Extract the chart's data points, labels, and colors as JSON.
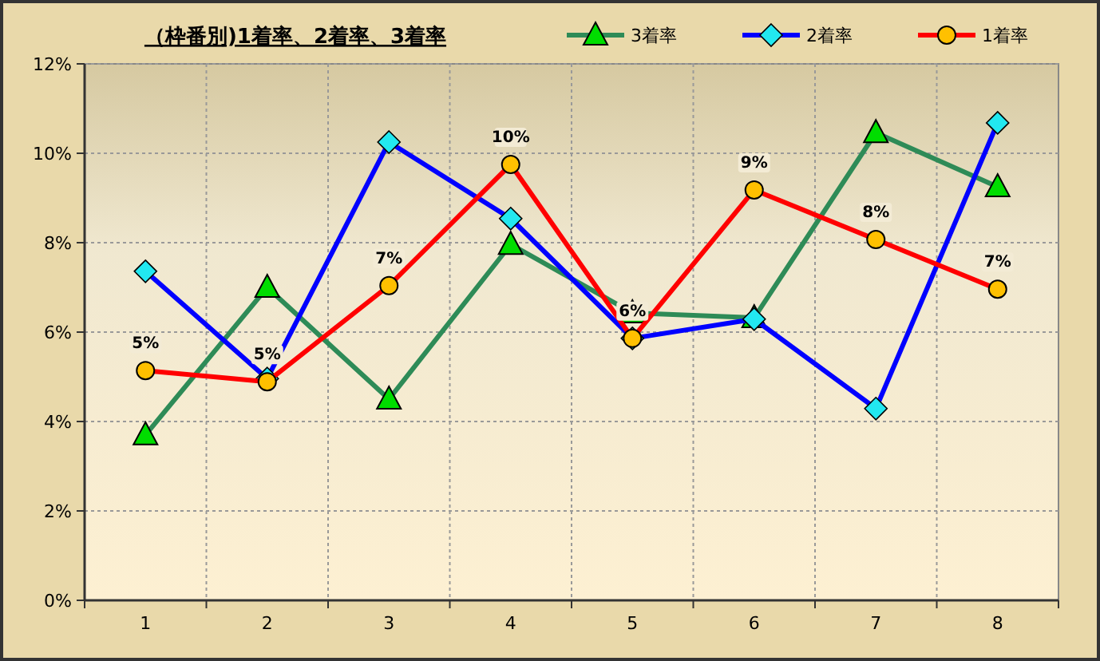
{
  "chart_data": {
    "type": "line",
    "title": "（枠番別)1着率、2着率、3着率",
    "categories": [
      "1",
      "2",
      "3",
      "4",
      "5",
      "6",
      "7",
      "8"
    ],
    "series": [
      {
        "name": "3着率",
        "color": "#2e8b57",
        "marker": "triangle",
        "values": [
          3.7,
          7.0,
          4.5,
          7.96,
          6.43,
          6.32,
          10.46,
          9.25
        ]
      },
      {
        "name": "2着率",
        "color": "#0000ff",
        "marker": "diamond",
        "values": [
          7.36,
          4.96,
          10.25,
          8.54,
          5.86,
          6.29,
          4.29,
          10.68
        ]
      },
      {
        "name": "1着率",
        "color": "#ff0000",
        "marker": "circle",
        "values": [
          5.14,
          4.89,
          7.04,
          9.75,
          5.86,
          9.18,
          8.07,
          6.96
        ],
        "value_labels": [
          "5%",
          "5%",
          "7%",
          "10%",
          "6%",
          "9%",
          "8%",
          "7%"
        ]
      }
    ],
    "ylim": [
      0,
      12
    ],
    "yticks": [
      {
        "value": 0,
        "label": "0%"
      },
      {
        "value": 2,
        "label": "2%"
      },
      {
        "value": 4,
        "label": "4%"
      },
      {
        "value": 6,
        "label": "6%"
      },
      {
        "value": 8,
        "label": "8%"
      },
      {
        "value": 10,
        "label": "10%"
      },
      {
        "value": 12,
        "label": "12%"
      }
    ],
    "grid": true,
    "legend": "top right",
    "line_style": "solid"
  }
}
